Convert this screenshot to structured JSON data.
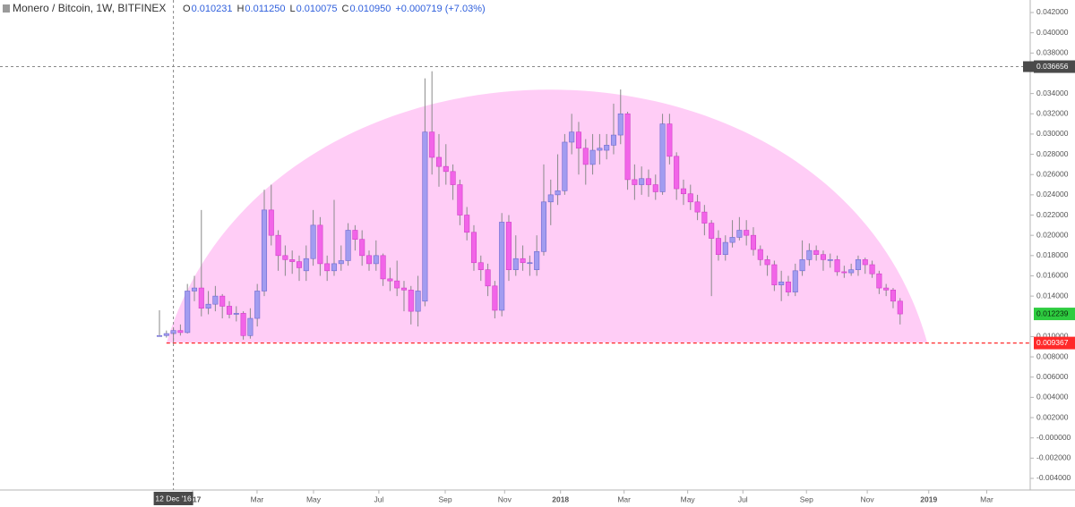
{
  "chart_data": {
    "type": "candlestick",
    "title": "Monero / Bitcoin, 1W, BITFINEX",
    "ohlc_legend": [
      {
        "key": "O",
        "text": "0.010231"
      },
      {
        "key": "H",
        "text": "0.011250"
      },
      {
        "key": "L",
        "text": "0.010075"
      },
      {
        "key": "C",
        "text": "0.010950"
      }
    ],
    "change": "+0.000719 (+7.03%)",
    "up_color": "#a29cf0",
    "down_color": "#f264e8",
    "open": [
      0.0101,
      0.0101,
      0.0103,
      0.0106,
      0.0104,
      0.0145,
      0.0148,
      0.0128,
      0.0132,
      0.014,
      0.013,
      0.0122,
      0.0123,
      0.0101,
      0.0118,
      0.0145,
      0.0225,
      0.02,
      0.018,
      0.0176,
      0.0174,
      0.0165,
      0.0177,
      0.021,
      0.0172,
      0.0165,
      0.0172,
      0.0175,
      0.0205,
      0.0196,
      0.018,
      0.0172,
      0.018,
      0.0157,
      0.0155,
      0.0148,
      0.0146,
      0.0125,
      0.0135,
      0.0302,
      0.0277,
      0.0268,
      0.0263,
      0.025,
      0.022,
      0.0203,
      0.0173,
      0.0166,
      0.015,
      0.0126,
      0.0213,
      0.0166,
      0.0177,
      0.0173,
      0.0166,
      0.0184,
      0.0233,
      0.024,
      0.0244,
      0.0292,
      0.0302,
      0.0286,
      0.027,
      0.0284,
      0.0284,
      0.0289,
      0.0299,
      0.032,
      0.0255,
      0.025,
      0.0256,
      0.025,
      0.0243,
      0.031,
      0.0278,
      0.0246,
      0.0241,
      0.0233,
      0.0223,
      0.0212,
      0.0197,
      0.0181,
      0.0193,
      0.0198,
      0.0205,
      0.02,
      0.0186,
      0.0176,
      0.0171,
      0.0151,
      0.0154,
      0.0144,
      0.0165,
      0.0176,
      0.0185,
      0.0181,
      0.0176,
      0.0176,
      0.0164,
      0.0163,
      0.0166,
      0.0176,
      0.0171,
      0.0162,
      0.0148,
      0.0146,
      0.0135
    ],
    "high": [
      0.0126,
      0.0106,
      0.0108,
      0.0112,
      0.0152,
      0.016,
      0.0225,
      0.0145,
      0.015,
      0.0142,
      0.0135,
      0.013,
      0.0125,
      0.0128,
      0.0152,
      0.0245,
      0.025,
      0.0205,
      0.019,
      0.0185,
      0.018,
      0.019,
      0.0225,
      0.0218,
      0.018,
      0.0235,
      0.019,
      0.0212,
      0.021,
      0.0205,
      0.0185,
      0.0195,
      0.0182,
      0.0168,
      0.0175,
      0.0155,
      0.015,
      0.016,
      0.0355,
      0.0362,
      0.03,
      0.029,
      0.027,
      0.0255,
      0.0228,
      0.021,
      0.018,
      0.0172,
      0.0155,
      0.0222,
      0.022,
      0.02,
      0.019,
      0.018,
      0.02,
      0.027,
      0.0255,
      0.028,
      0.03,
      0.032,
      0.0312,
      0.0295,
      0.03,
      0.03,
      0.03,
      0.033,
      0.0344,
      0.0322,
      0.027,
      0.0268,
      0.0265,
      0.026,
      0.032,
      0.032,
      0.0282,
      0.0255,
      0.025,
      0.024,
      0.023,
      0.0215,
      0.0205,
      0.02,
      0.0215,
      0.0218,
      0.0215,
      0.0208,
      0.019,
      0.018,
      0.0175,
      0.0165,
      0.016,
      0.0172,
      0.0195,
      0.0192,
      0.019,
      0.0185,
      0.0182,
      0.018,
      0.017,
      0.0172,
      0.018,
      0.0178,
      0.0175,
      0.0165,
      0.0152,
      0.0148,
      0.0138
    ],
    "low": [
      0.01,
      0.0099,
      0.0094,
      0.0101,
      0.0103,
      0.0135,
      0.012,
      0.0122,
      0.0125,
      0.0118,
      0.0118,
      0.0115,
      0.0097,
      0.0098,
      0.011,
      0.014,
      0.019,
      0.0165,
      0.016,
      0.0162,
      0.0155,
      0.0155,
      0.017,
      0.016,
      0.0155,
      0.016,
      0.0165,
      0.017,
      0.0185,
      0.017,
      0.0165,
      0.0165,
      0.015,
      0.0145,
      0.014,
      0.0125,
      0.0112,
      0.011,
      0.013,
      0.026,
      0.0248,
      0.025,
      0.0235,
      0.021,
      0.0195,
      0.0165,
      0.0155,
      0.014,
      0.0118,
      0.012,
      0.0155,
      0.016,
      0.0165,
      0.016,
      0.016,
      0.018,
      0.021,
      0.023,
      0.024,
      0.028,
      0.026,
      0.025,
      0.026,
      0.027,
      0.0275,
      0.028,
      0.029,
      0.0245,
      0.0235,
      0.024,
      0.0238,
      0.0235,
      0.024,
      0.027,
      0.0235,
      0.023,
      0.0225,
      0.0215,
      0.02,
      0.014,
      0.0175,
      0.0175,
      0.0188,
      0.0195,
      0.019,
      0.018,
      0.017,
      0.016,
      0.0145,
      0.0135,
      0.014,
      0.014,
      0.016,
      0.017,
      0.0175,
      0.0165,
      0.0168,
      0.016,
      0.0158,
      0.016,
      0.016,
      0.0162,
      0.0158,
      0.0142,
      0.014,
      0.0128,
      0.0112
    ],
    "close": [
      0.0101,
      0.0103,
      0.0106,
      0.0104,
      0.0145,
      0.0148,
      0.0128,
      0.0132,
      0.014,
      0.013,
      0.0122,
      0.0123,
      0.0101,
      0.0118,
      0.0145,
      0.0225,
      0.02,
      0.018,
      0.0176,
      0.0174,
      0.0168,
      0.0177,
      0.021,
      0.0172,
      0.0165,
      0.0172,
      0.0175,
      0.0205,
      0.0196,
      0.018,
      0.0172,
      0.018,
      0.0157,
      0.0155,
      0.0148,
      0.0146,
      0.0125,
      0.0145,
      0.0302,
      0.0277,
      0.0268,
      0.0263,
      0.025,
      0.022,
      0.0203,
      0.0173,
      0.0166,
      0.015,
      0.0126,
      0.0213,
      0.0166,
      0.0177,
      0.0173,
      0.0173,
      0.0184,
      0.0233,
      0.024,
      0.0244,
      0.0292,
      0.0302,
      0.0286,
      0.027,
      0.0284,
      0.0286,
      0.0289,
      0.0299,
      0.032,
      0.0255,
      0.025,
      0.0256,
      0.025,
      0.0243,
      0.031,
      0.0278,
      0.0246,
      0.0241,
      0.0233,
      0.0223,
      0.0212,
      0.0197,
      0.0181,
      0.0193,
      0.0198,
      0.0205,
      0.02,
      0.0186,
      0.0176,
      0.0171,
      0.0151,
      0.0154,
      0.0144,
      0.0165,
      0.0176,
      0.0185,
      0.0181,
      0.0176,
      0.0176,
      0.0164,
      0.0163,
      0.0166,
      0.0176,
      0.0171,
      0.0162,
      0.0148,
      0.0146,
      0.0135,
      0.012239
    ],
    "xlim": [
      -22.82,
      124.62
    ],
    "xticks": [
      {
        "value": 4.74,
        "label": "2017"
      },
      {
        "value": 13.97,
        "label": "Mar"
      },
      {
        "value": 22.05,
        "label": "May"
      },
      {
        "value": 31.4,
        "label": "Jul"
      },
      {
        "value": 40.9,
        "label": "Sep"
      },
      {
        "value": 49.4,
        "label": "Nov"
      },
      {
        "value": 57.4,
        "label": "2018"
      },
      {
        "value": 66.5,
        "label": "Mar"
      },
      {
        "value": 75.6,
        "label": "May"
      },
      {
        "value": 83.5,
        "label": "Jul"
      },
      {
        "value": 92.6,
        "label": "Sep"
      },
      {
        "value": 101.3,
        "label": "Nov"
      },
      {
        "value": 110.1,
        "label": "2019"
      },
      {
        "value": 118.4,
        "label": "Mar"
      }
    ],
    "ylim": [
      -0.005148,
      0.043236
    ],
    "yticks": [
      {
        "value": 0.042,
        "label": "0.042000"
      },
      {
        "value": 0.04,
        "label": "0.040000"
      },
      {
        "value": 0.038,
        "label": "0.038000"
      },
      {
        "value": 0.034,
        "label": "0.034000"
      },
      {
        "value": 0.032,
        "label": "0.032000"
      },
      {
        "value": 0.03,
        "label": "0.030000"
      },
      {
        "value": 0.028,
        "label": "0.028000"
      },
      {
        "value": 0.026,
        "label": "0.026000"
      },
      {
        "value": 0.024,
        "label": "0.024000"
      },
      {
        "value": 0.022,
        "label": "0.022000"
      },
      {
        "value": 0.02,
        "label": "0.020000"
      },
      {
        "value": 0.018,
        "label": "0.018000"
      },
      {
        "value": 0.016,
        "label": "0.016000"
      },
      {
        "value": 0.014,
        "label": "0.014000"
      },
      {
        "value": 0.01,
        "label": "0.010000"
      },
      {
        "value": 0.008,
        "label": "0.008000"
      },
      {
        "value": 0.006,
        "label": "0.006000"
      },
      {
        "value": 0.004,
        "label": "0.004000"
      },
      {
        "value": 0.002,
        "label": "0.002000"
      },
      {
        "value": 0,
        "label": "-0.000000"
      },
      {
        "value": -0.002,
        "label": "-0.002000"
      },
      {
        "value": -0.004,
        "label": "-0.004000"
      }
    ],
    "crosshair": {
      "x": 2,
      "x_label": "12 Dec '16",
      "y": 0.036656,
      "y_label": "0.036656"
    },
    "last_price": {
      "value": 0.012239,
      "label": "0.012239",
      "color": "#2ecc40"
    },
    "support_line": {
      "value": 0.009367,
      "label": "0.009367",
      "color": "#ff2a2a",
      "from_x": 1
    }
  }
}
